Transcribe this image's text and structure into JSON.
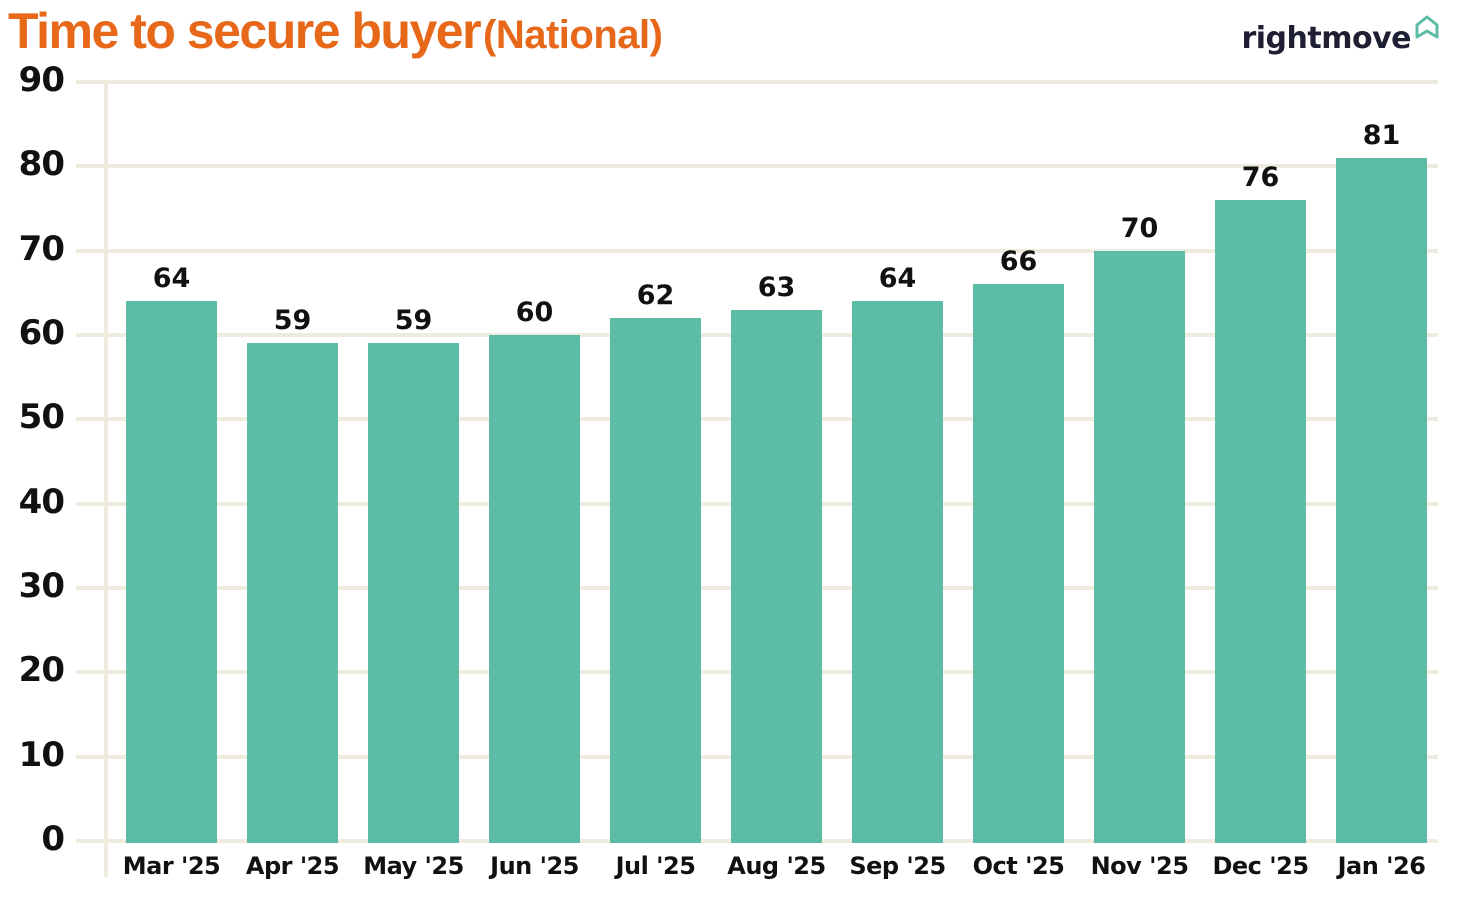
{
  "header": {
    "title_main": "Time to secure buyer",
    "title_sub": "(National)",
    "logo_text": "rightmove",
    "logo_icon": "house-outline-icon"
  },
  "colors": {
    "title": "#e8681a",
    "bar": "#5dbca6",
    "gridline": "#efebdf",
    "logo_text": "#1f1f33",
    "logo_icon": "#5dbca6"
  },
  "chart_data": {
    "type": "bar",
    "title": "Time to secure buyer (National)",
    "xlabel": "",
    "ylabel": "",
    "ylim": [
      0,
      90
    ],
    "yticks": [
      0,
      10,
      20,
      30,
      40,
      50,
      60,
      70,
      80,
      90
    ],
    "grid": true,
    "legend": null,
    "data_labels": true,
    "categories": [
      "Mar '25",
      "Apr '25",
      "May '25",
      "Jun '25",
      "Jul '25",
      "Aug '25",
      "Sep '25",
      "Oct '25",
      "Nov '25",
      "Dec '25",
      "Jan '26"
    ],
    "values": [
      64,
      59,
      59,
      60,
      62,
      63,
      64,
      66,
      70,
      76,
      81
    ],
    "value_labels": [
      "64",
      "59",
      "59",
      "60",
      "62",
      "63",
      "64",
      "66",
      "70",
      "76",
      "81"
    ]
  }
}
